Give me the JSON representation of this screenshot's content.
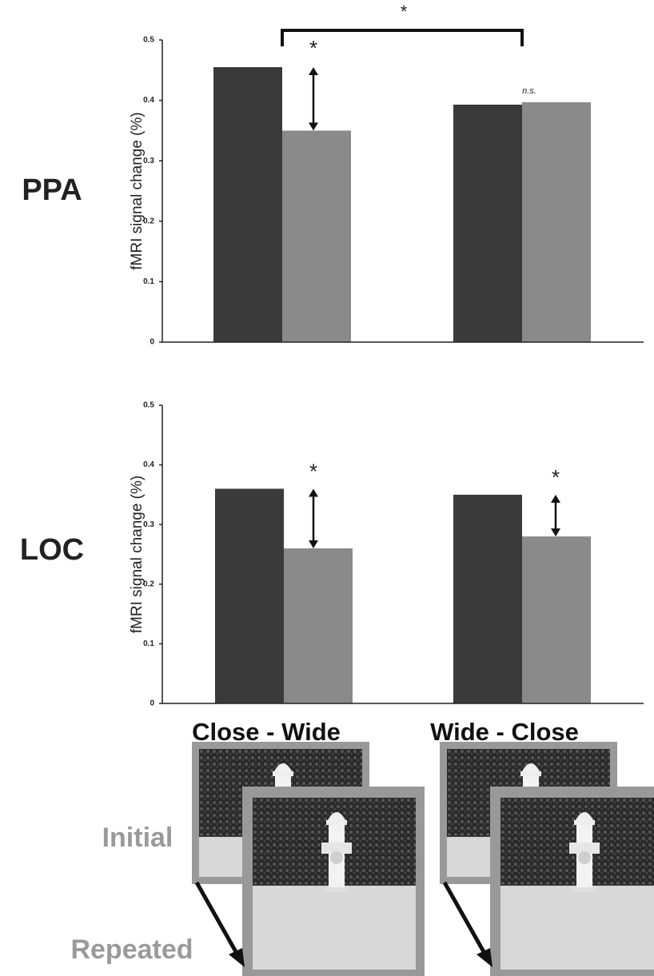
{
  "chart_data": [
    {
      "type": "bar",
      "region": "PPA",
      "y_label": "fMRI signal change (%)",
      "categories": [
        null,
        null
      ],
      "series": [
        {
          "color": "#3a3a3a",
          "values": [
            0.455,
            0.393
          ]
        },
        {
          "color": "#8a8a8a",
          "values": [
            0.35,
            0.397
          ]
        }
      ],
      "ylim": [
        0,
        0.5
      ],
      "yticks": [
        0,
        0.1,
        0.2,
        0.3,
        0.4,
        0.5
      ],
      "annotations": [
        "*",
        "n.s.",
        "*"
      ]
    },
    {
      "type": "bar",
      "region": "LOC",
      "y_label": "fMRI signal change (%)",
      "categories": [
        "Close - Wide",
        "Wide - Close"
      ],
      "series": [
        {
          "color": "#3a3a3a",
          "values": [
            0.36,
            0.35
          ]
        },
        {
          "color": "#8a8a8a",
          "values": [
            0.26,
            0.28
          ]
        }
      ],
      "ylim": [
        0,
        0.5
      ],
      "yticks": [
        0,
        0.1,
        0.2,
        0.3,
        0.4,
        0.5
      ],
      "annotations": [
        "*",
        "*"
      ]
    }
  ],
  "stimuli": {
    "initial_label": "Initial",
    "repeated_label": "Repeated"
  }
}
